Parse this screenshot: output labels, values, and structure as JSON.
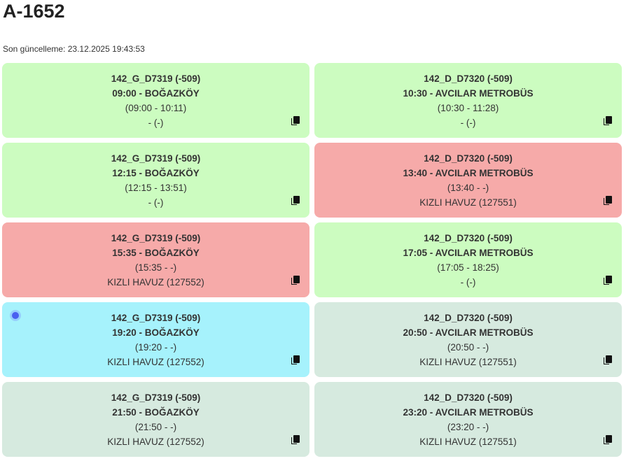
{
  "page": {
    "title": "A-1652",
    "last_update_label": "Son güncelleme: 23.12.2025 19:43:53"
  },
  "colors": {
    "green": "#ccfcc0",
    "red": "#f6aaa9",
    "cyan": "#a6f2fc",
    "gray": "#d6eadf"
  },
  "cards": [
    {
      "route": "142_G_D7319 (-509)",
      "departure": "09:00 - BOĞAZKÖY",
      "time_range": "(09:00 - 10:11)",
      "vehicle": "- (-)",
      "status": "green"
    },
    {
      "route": "142_D_D7320 (-509)",
      "departure": "10:30 - AVCILAR METROBÜS",
      "time_range": "(10:30 - 11:28)",
      "vehicle": "- (-)",
      "status": "green"
    },
    {
      "route": "142_G_D7319 (-509)",
      "departure": "12:15 - BOĞAZKÖY",
      "time_range": "(12:15 - 13:51)",
      "vehicle": "- (-)",
      "status": "green"
    },
    {
      "route": "142_D_D7320 (-509)",
      "departure": "13:40 - AVCILAR METROBÜS",
      "time_range": "(13:40 - -)",
      "vehicle": "KIZLI HAVUZ (127551)",
      "status": "red"
    },
    {
      "route": "142_G_D7319 (-509)",
      "departure": "15:35 - BOĞAZKÖY",
      "time_range": "(15:35 - -)",
      "vehicle": "KIZLI HAVUZ (127552)",
      "status": "red"
    },
    {
      "route": "142_D_D7320 (-509)",
      "departure": "17:05 - AVCILAR METROBÜS",
      "time_range": "(17:05 - 18:25)",
      "vehicle": "- (-)",
      "status": "green"
    },
    {
      "route": "142_G_D7319 (-509)",
      "departure": "19:20 - BOĞAZKÖY",
      "time_range": "(19:20 - -)",
      "vehicle": "KIZLI HAVUZ (127552)",
      "status": "cyan",
      "live_indicator": true
    },
    {
      "route": "142_D_D7320 (-509)",
      "departure": "20:50 - AVCILAR METROBÜS",
      "time_range": "(20:50 - -)",
      "vehicle": "KIZLI HAVUZ (127551)",
      "status": "gray"
    },
    {
      "route": "142_G_D7319 (-509)",
      "departure": "21:50 - BOĞAZKÖY",
      "time_range": "(21:50 - -)",
      "vehicle": "KIZLI HAVUZ (127552)",
      "status": "gray"
    },
    {
      "route": "142_D_D7320 (-509)",
      "departure": "23:20 - AVCILAR METROBÜS",
      "time_range": "(23:20 - -)",
      "vehicle": "KIZLI HAVUZ (127551)",
      "status": "gray"
    }
  ],
  "icons": {
    "copy": "copy-icon",
    "live": "live-dot-icon"
  }
}
